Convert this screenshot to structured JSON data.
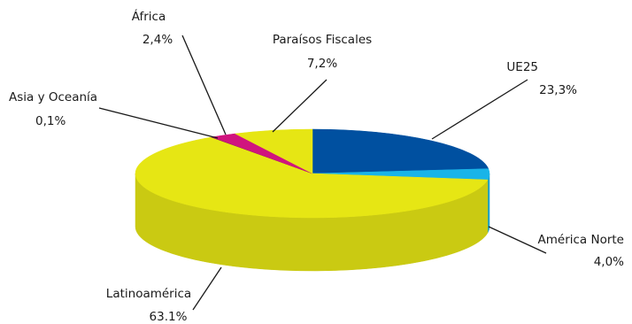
{
  "chart_data": {
    "type": "pie",
    "style": "3d",
    "title": "",
    "legend": "none",
    "slices": [
      {
        "label": "UE25",
        "value_label": "23,3%",
        "value": 23.3,
        "color": "#0050a0"
      },
      {
        "label": "América Norte",
        "value_label": "4,0%",
        "value": 4.0,
        "color": "#19b4e8"
      },
      {
        "label": "Latinoamérica",
        "value_label": "63.1%",
        "value": 63.1,
        "color": "#e6e614"
      },
      {
        "label": "Asia y Oceanía",
        "value_label": "0,1%",
        "value": 0.1,
        "color": "#8c1c5a"
      },
      {
        "label": "África",
        "value_label": "2,4%",
        "value": 2.4,
        "color": "#d0147e"
      },
      {
        "label": "Paraísos Fiscales",
        "value_label": "7,2%",
        "value": 7.2,
        "color": "#e6e614"
      }
    ]
  }
}
